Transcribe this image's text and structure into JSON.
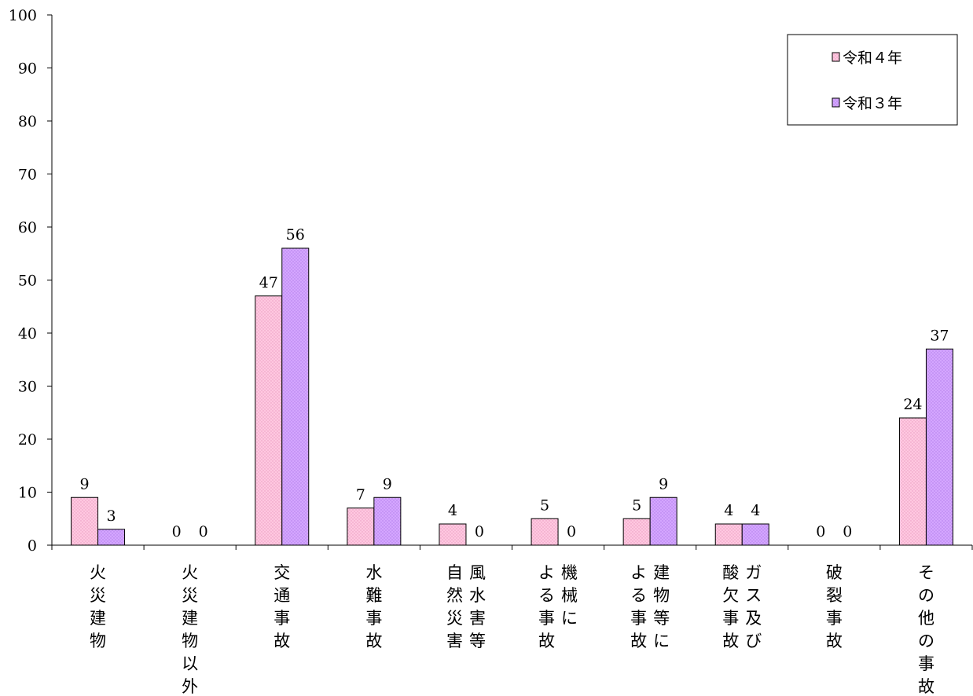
{
  "chart_data": {
    "type": "bar",
    "title": "",
    "xlabel": "",
    "ylabel": "",
    "ylim": [
      0,
      100
    ],
    "yticks": [
      "0",
      "10",
      "20",
      "30",
      "40",
      "50",
      "60",
      "70",
      "80",
      "90",
      "100"
    ],
    "categories": [
      [
        "火災建物"
      ],
      [
        "火災建物以外"
      ],
      [
        "交通事故"
      ],
      [
        "水難事故"
      ],
      [
        "風水害等",
        "自然災害"
      ],
      [
        "機械に",
        "よる事故"
      ],
      [
        "建物等に",
        "よる事故"
      ],
      [
        "ガス及び",
        "酸欠事故"
      ],
      [
        "破裂事故"
      ],
      [
        "その他の事故"
      ]
    ],
    "series": [
      {
        "name": "令和４年",
        "values": [
          9,
          0,
          47,
          7,
          4,
          5,
          5,
          4,
          0,
          24
        ],
        "color": "#ffc0dc"
      },
      {
        "name": "令和３年",
        "values": [
          3,
          0,
          56,
          9,
          0,
          0,
          9,
          4,
          0,
          37
        ],
        "color": "#cc99ff"
      }
    ],
    "grid": false,
    "legend_position": "top-right"
  }
}
